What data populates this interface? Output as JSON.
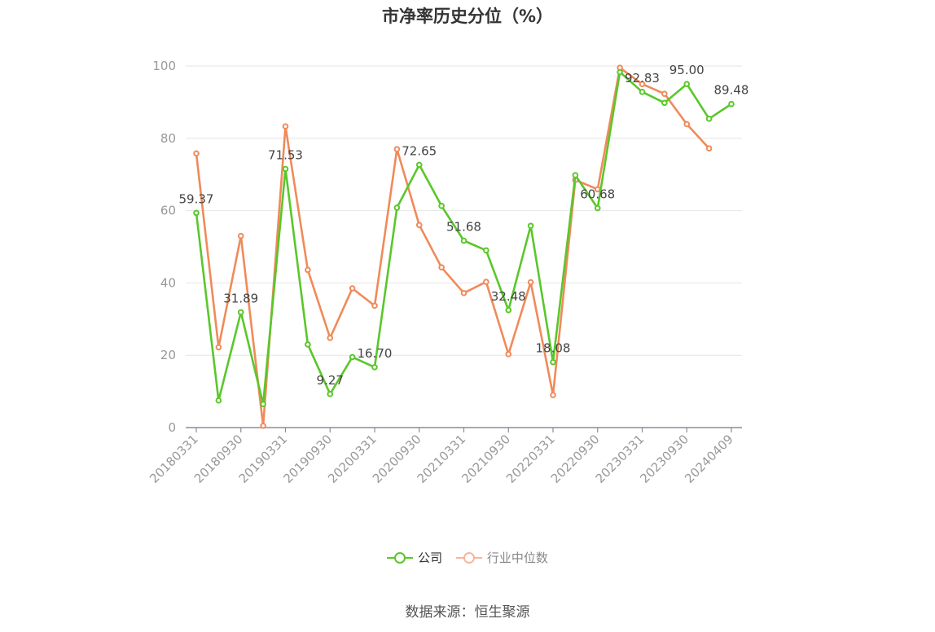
{
  "chart_data": {
    "type": "line",
    "title": "市净率历史分位（%）",
    "ylim": [
      0,
      100
    ],
    "yticks": [
      0,
      20,
      40,
      60,
      80,
      100
    ],
    "grid": true,
    "legend_position": "bottom",
    "x": [
      "20180331",
      "20180630",
      "20180930",
      "20181231",
      "20190331",
      "20190630",
      "20190930",
      "20191231",
      "20200331",
      "20200630",
      "20200930",
      "20201231",
      "20210331",
      "20210630",
      "20210930",
      "20211231",
      "20220331",
      "20220630",
      "20220930",
      "20221231",
      "20230331",
      "20230630",
      "20230930",
      "20231231",
      "20240409"
    ],
    "xtick_labels": [
      "20180331",
      "20180930",
      "20190331",
      "20190930",
      "20200331",
      "20200930",
      "20210331",
      "20210930",
      "20220331",
      "20220930",
      "20230331",
      "20230930",
      "20240409"
    ],
    "series": [
      {
        "name": "公司",
        "color": "#5ac72a",
        "values": [
          59.37,
          7.5,
          31.89,
          6.5,
          71.53,
          23.0,
          9.27,
          19.5,
          16.7,
          60.8,
          72.65,
          61.3,
          51.68,
          49.0,
          32.48,
          55.8,
          18.08,
          69.8,
          60.68,
          98.3,
          92.83,
          89.8,
          95.0,
          85.4,
          89.48
        ],
        "data_labels": [
          {
            "index": 0,
            "text": "59.37"
          },
          {
            "index": 2,
            "text": "31.89"
          },
          {
            "index": 4,
            "text": "71.53"
          },
          {
            "index": 6,
            "text": "9.27"
          },
          {
            "index": 8,
            "text": "16.70"
          },
          {
            "index": 10,
            "text": "72.65"
          },
          {
            "index": 12,
            "text": "51.68"
          },
          {
            "index": 14,
            "text": "32.48"
          },
          {
            "index": 16,
            "text": "18.08"
          },
          {
            "index": 18,
            "text": "60.68"
          },
          {
            "index": 20,
            "text": "92.83"
          },
          {
            "index": 22,
            "text": "95.00"
          },
          {
            "index": 24,
            "text": "89.48"
          }
        ]
      },
      {
        "name": "行业中位数",
        "color": "#f08a5a",
        "values": [
          75.8,
          22.2,
          53.0,
          0.5,
          83.3,
          43.6,
          24.8,
          38.5,
          33.7,
          77.0,
          56.0,
          44.3,
          37.2,
          40.3,
          20.3,
          40.2,
          9.0,
          68.5,
          65.9,
          99.5,
          95.0,
          92.3,
          83.9,
          77.2,
          null
        ]
      }
    ]
  },
  "legend": {
    "company_label": "公司",
    "industry_label": "行业中位数"
  },
  "source": "数据来源：恒生聚源"
}
